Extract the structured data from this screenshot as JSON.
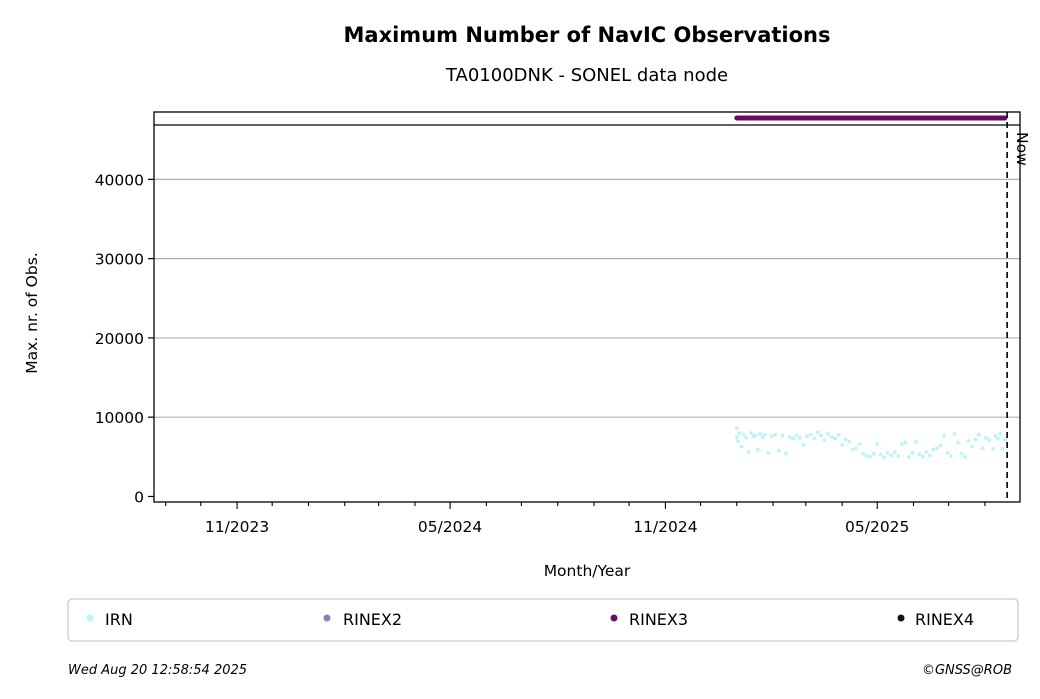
{
  "chart_data": {
    "type": "scatter",
    "title": "Maximum Number of NavIC Observations",
    "subtitle": "TA0100DNK - SONEL data node",
    "xlabel": "Month/Year",
    "ylabel": "Max. nr. of Obs.",
    "x_tick_labels": [
      "11/2023",
      "05/2024",
      "11/2024",
      "05/2025"
    ],
    "x_ticks": [
      "2023-11-01",
      "2024-05-01",
      "2024-11-01",
      "2025-05-01"
    ],
    "xlim": [
      "2023-08-22",
      "2025-08-31"
    ],
    "ylim": [
      -700,
      48500
    ],
    "y_ticks": [
      0,
      10000,
      20000,
      30000,
      40000
    ],
    "y_tick_labels": [
      "0",
      "10000",
      "20000",
      "30000",
      "40000"
    ],
    "grid": "horizontal",
    "now_label": "Now",
    "now_date": "2025-08-20",
    "rinex_band_y": 47000,
    "legend_position": "bottom",
    "series": [
      {
        "name": "IRN",
        "color": "#bdf4f4",
        "points": [
          [
            "2025-01-01",
            8600
          ],
          [
            "2025-01-01",
            7500
          ],
          [
            "2025-01-02",
            7000
          ],
          [
            "2025-01-03",
            8000
          ],
          [
            "2025-01-05",
            6300
          ],
          [
            "2025-01-07",
            7800
          ],
          [
            "2025-01-09",
            7400
          ],
          [
            "2025-01-11",
            5600
          ],
          [
            "2025-01-13",
            8000
          ],
          [
            "2025-01-15",
            7600
          ],
          [
            "2025-01-17",
            7700
          ],
          [
            "2025-01-19",
            5900
          ],
          [
            "2025-01-21",
            7900
          ],
          [
            "2025-01-23",
            7500
          ],
          [
            "2025-01-25",
            7800
          ],
          [
            "2025-01-28",
            5500
          ],
          [
            "2025-01-31",
            7600
          ],
          [
            "2025-02-03",
            7800
          ],
          [
            "2025-02-06",
            5800
          ],
          [
            "2025-02-09",
            7700
          ],
          [
            "2025-02-12",
            5400
          ],
          [
            "2025-02-15",
            7500
          ],
          [
            "2025-02-18",
            7300
          ],
          [
            "2025-02-21",
            7700
          ],
          [
            "2025-02-24",
            7400
          ],
          [
            "2025-02-27",
            6500
          ],
          [
            "2025-03-02",
            7600
          ],
          [
            "2025-03-05",
            7800
          ],
          [
            "2025-03-08",
            7300
          ],
          [
            "2025-03-11",
            8100
          ],
          [
            "2025-03-14",
            7700
          ],
          [
            "2025-03-17",
            7100
          ],
          [
            "2025-03-20",
            7900
          ],
          [
            "2025-03-23",
            7500
          ],
          [
            "2025-03-26",
            7300
          ],
          [
            "2025-03-29",
            7800
          ],
          [
            "2025-04-01",
            6500
          ],
          [
            "2025-04-04",
            7200
          ],
          [
            "2025-04-07",
            6900
          ],
          [
            "2025-04-10",
            5900
          ],
          [
            "2025-04-13",
            6100
          ],
          [
            "2025-04-16",
            6600
          ],
          [
            "2025-04-19",
            5400
          ],
          [
            "2025-04-22",
            5100
          ],
          [
            "2025-04-25",
            5000
          ],
          [
            "2025-04-28",
            5400
          ],
          [
            "2025-05-01",
            6600
          ],
          [
            "2025-05-04",
            5300
          ],
          [
            "2025-05-07",
            4900
          ],
          [
            "2025-05-10",
            5500
          ],
          [
            "2025-05-13",
            5200
          ],
          [
            "2025-05-16",
            5600
          ],
          [
            "2025-05-19",
            5100
          ],
          [
            "2025-05-22",
            6600
          ],
          [
            "2025-05-25",
            6800
          ],
          [
            "2025-05-28",
            5000
          ],
          [
            "2025-05-31",
            5500
          ],
          [
            "2025-06-03",
            6900
          ],
          [
            "2025-06-06",
            5300
          ],
          [
            "2025-06-09",
            5000
          ],
          [
            "2025-06-12",
            5600
          ],
          [
            "2025-06-15",
            5200
          ],
          [
            "2025-06-18",
            5900
          ],
          [
            "2025-06-21",
            6100
          ],
          [
            "2025-06-24",
            6400
          ],
          [
            "2025-06-27",
            7700
          ],
          [
            "2025-06-30",
            5500
          ],
          [
            "2025-07-03",
            5100
          ],
          [
            "2025-07-06",
            7900
          ],
          [
            "2025-07-09",
            6800
          ],
          [
            "2025-07-12",
            5400
          ],
          [
            "2025-07-15",
            5000
          ],
          [
            "2025-07-18",
            7000
          ],
          [
            "2025-07-21",
            6300
          ],
          [
            "2025-07-24",
            7200
          ],
          [
            "2025-07-27",
            7800
          ],
          [
            "2025-07-30",
            6100
          ],
          [
            "2025-08-02",
            7400
          ],
          [
            "2025-08-05",
            7100
          ],
          [
            "2025-08-08",
            6000
          ],
          [
            "2025-08-10",
            7600
          ],
          [
            "2025-08-12",
            7300
          ],
          [
            "2025-08-14",
            7900
          ],
          [
            "2025-08-16",
            6000
          ],
          [
            "2025-08-18",
            7200
          ]
        ]
      },
      {
        "name": "RINEX2",
        "color": "#8b7fc4",
        "points": []
      },
      {
        "name": "RINEX3",
        "color": "#6b0a60",
        "range": [
          "2025-01-01",
          "2025-08-18"
        ]
      },
      {
        "name": "RINEX4",
        "color": "#1a0a1e",
        "points": []
      }
    ]
  },
  "footer": {
    "timestamp": "Wed Aug 20 12:58:54 2025",
    "credit": "©GNSS@ROB"
  }
}
